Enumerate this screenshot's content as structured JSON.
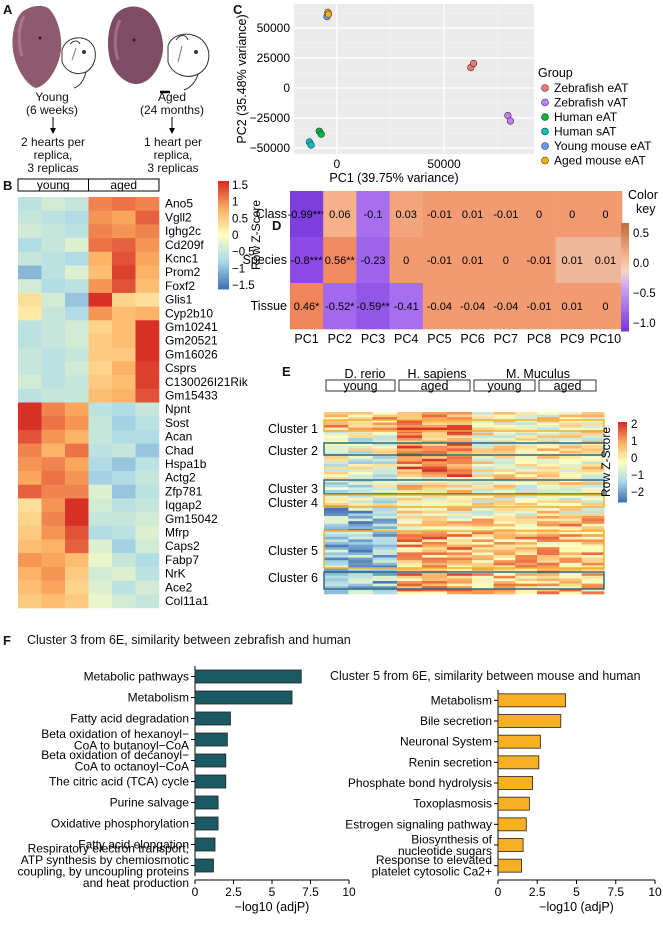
{
  "panels": {
    "a": {
      "letter": "A",
      "young_label": "Young",
      "young_age": "(6 weeks)",
      "aged_label": "Aged",
      "aged_age": "(24 months)",
      "young_sampling": [
        "2 hearts per",
        "replica,",
        "3 replicas"
      ],
      "aged_sampling": [
        "1 heart per",
        "replica,",
        "3 replicas"
      ]
    },
    "b": {
      "letter": "B",
      "groups": [
        "young",
        "aged"
      ],
      "legend_title": "Row Z-Score",
      "legend_ticks": [
        "1.5",
        "1",
        "0.5",
        "0",
        "−0.5",
        "−1",
        "−1.5"
      ],
      "genes": [
        "Ano5",
        "Vgll2",
        "Ighg2c",
        "Cd209f",
        "Kcnc1",
        "Prom2",
        "Foxf2",
        "Glis1",
        "Cyp2b10",
        "Gm10241",
        "Gm20521",
        "Gm16026",
        "Csprs",
        "C130026I21Rik",
        "Gm15433",
        "Npnt",
        "Sost",
        "Acan",
        "Chad",
        "Hspa1b",
        "Actg2",
        "Zfp781",
        "Iqgap2",
        "Gm15042",
        "Mfrp",
        "Caps2",
        "Fabp7",
        "NrK",
        "Ace2",
        "Col11a1"
      ],
      "zscores": [
        [
          -0.6,
          -0.4,
          -0.5,
          1.0,
          1.1,
          1.0
        ],
        [
          -0.5,
          -0.6,
          -0.7,
          0.9,
          0.8,
          1.2
        ],
        [
          -0.4,
          -0.5,
          -0.6,
          1.0,
          0.9,
          1.0
        ],
        [
          -0.7,
          -0.5,
          -0.3,
          1.1,
          1.2,
          0.9
        ],
        [
          -0.5,
          -0.6,
          -0.7,
          0.7,
          1.3,
          0.8
        ],
        [
          -1.0,
          -0.6,
          -0.3,
          0.6,
          1.4,
          0.7
        ],
        [
          -0.4,
          -0.7,
          -0.6,
          0.9,
          1.3,
          0.6
        ],
        [
          0.3,
          -0.4,
          -0.9,
          1.6,
          0.4,
          0.3
        ],
        [
          0.2,
          -0.5,
          -0.7,
          0.9,
          0.6,
          0.7
        ],
        [
          -0.6,
          -0.5,
          -0.4,
          0.4,
          0.6,
          1.6
        ],
        [
          -0.6,
          -0.5,
          -0.4,
          0.5,
          0.6,
          1.5
        ],
        [
          -0.5,
          -0.6,
          -0.5,
          0.5,
          0.5,
          1.6
        ],
        [
          -0.5,
          -0.6,
          -0.4,
          0.4,
          0.7,
          1.4
        ],
        [
          -0.4,
          -0.6,
          -0.5,
          0.5,
          0.6,
          1.4
        ],
        [
          -0.6,
          -0.5,
          -0.5,
          0.6,
          0.7,
          1.3
        ],
        [
          1.6,
          1.0,
          0.8,
          -0.6,
          -0.7,
          -0.5
        ],
        [
          1.5,
          1.1,
          0.9,
          -0.5,
          -0.8,
          -0.6
        ],
        [
          1.3,
          0.9,
          0.7,
          -0.5,
          -0.7,
          -0.7
        ],
        [
          1.0,
          0.7,
          1.1,
          -0.6,
          -0.5,
          -0.9
        ],
        [
          0.9,
          1.0,
          0.8,
          -0.7,
          -0.9,
          -0.6
        ],
        [
          0.8,
          1.1,
          0.9,
          -0.8,
          -0.7,
          -0.5
        ],
        [
          1.2,
          1.0,
          1.0,
          -0.3,
          -0.9,
          -0.6
        ],
        [
          0.3,
          0.9,
          1.6,
          -0.4,
          -0.6,
          -0.5
        ],
        [
          0.4,
          1.0,
          1.5,
          -0.5,
          -0.5,
          -0.4
        ],
        [
          0.5,
          0.9,
          1.3,
          -0.7,
          -0.6,
          -0.3
        ],
        [
          0.6,
          0.7,
          1.2,
          -0.3,
          -0.8,
          -0.4
        ],
        [
          0.9,
          0.8,
          0.6,
          -0.2,
          -0.5,
          -0.7
        ],
        [
          0.7,
          0.9,
          0.5,
          -0.4,
          -0.3,
          -0.6
        ],
        [
          0.6,
          0.8,
          0.4,
          -0.3,
          -0.6,
          -0.4
        ],
        [
          0.5,
          0.6,
          0.5,
          -0.2,
          -0.4,
          -0.5
        ]
      ]
    },
    "c": {
      "letter": "C",
      "legend_title": "Group",
      "chart_data": {
        "type": "scatter",
        "xlabel": "PC1 (39.75% variance)",
        "ylabel": "PC2 (35.48% variance)",
        "xlim": [
          -20000,
          92000
        ],
        "ylim": [
          -55000,
          70000
        ],
        "xticks": [
          0,
          50000
        ],
        "yticks": [
          50000,
          25000,
          0,
          -25000,
          -50000
        ],
        "grid": true,
        "legend_position": "right",
        "series": [
          {
            "name": "Zebrafish eAT",
            "color": "#F8766D",
            "points": [
              [
                62500,
                17000
              ],
              [
                63800,
                20500
              ]
            ]
          },
          {
            "name": "Zebrafish vAT",
            "color": "#C77CFF",
            "points": [
              [
                79800,
                -23000
              ],
              [
                81000,
                -27500
              ]
            ]
          },
          {
            "name": "Human eAT",
            "color": "#00BA38",
            "points": [
              [
                -8200,
                -36000
              ],
              [
                -7300,
                -38500
              ]
            ]
          },
          {
            "name": "Human sAT",
            "color": "#00BFC4",
            "points": [
              [
                -12800,
                -45000
              ],
              [
                -12000,
                -47500
              ]
            ]
          },
          {
            "name": "Young mouse eAT",
            "color": "#619CFF",
            "points": [
              [
                -4600,
                59500
              ]
            ]
          },
          {
            "name": "Aged mouse eAT",
            "color": "#FFB000",
            "points": [
              [
                -4200,
                63000
              ],
              [
                -3900,
                61500
              ]
            ]
          }
        ]
      }
    },
    "d": {
      "letter": "D",
      "key_title": [
        "Color",
        "key"
      ],
      "key_ticks": [
        "0.5",
        "0.0",
        "−0.5",
        "−1.0"
      ],
      "rows": [
        "Class",
        "Species",
        "Tissue"
      ],
      "cols": [
        "PC1",
        "PC2",
        "PC3",
        "PC4",
        "PC5",
        "PC6",
        "PC7",
        "PC8",
        "PC9",
        "PC10"
      ],
      "values": [
        [
          -0.99,
          0.06,
          -0.1,
          0.03,
          -0.01,
          0.01,
          -0.01,
          0,
          0,
          0
        ],
        [
          -0.8,
          0.56,
          -0.23,
          0,
          -0.01,
          0.01,
          0,
          -0.01,
          0.01,
          0.01
        ],
        [
          0.46,
          -0.52,
          -0.59,
          -0.41,
          -0.04,
          -0.04,
          -0.04,
          -0.01,
          0.01,
          0
        ]
      ],
      "colors": [
        [
          "#7e3fe0",
          "#f6b08c",
          "#a86ef0",
          "#f4a57e",
          "#f29a72",
          "#f29a72",
          "#f29a72",
          "#f29a72",
          "#f29a72",
          "#f29a72"
        ],
        [
          "#8d4ae5",
          "#f08a62",
          "#9f63ee",
          "#f29a72",
          "#f29a72",
          "#f29a72",
          "#f29a72",
          "#f29a72",
          "#efb79a",
          "#efb79a"
        ],
        [
          "#f0845a",
          "#a268ee",
          "#9357e8",
          "#a86ef0",
          "#f29a72",
          "#f29a72",
          "#f29a72",
          "#f29a72",
          "#f29a72",
          "#f29a72"
        ]
      ],
      "labels": [
        [
          "-0.99***",
          "0.06",
          "-0.1",
          "0.03",
          "-0.01",
          "0.01",
          "-0.01",
          "0",
          "0",
          "0"
        ],
        [
          "-0.8***",
          "0.56**",
          "-0.23",
          "0",
          "-0.01",
          "0.01",
          "0",
          "-0.01",
          "0.01",
          "0.01"
        ],
        [
          "0.46*",
          "-0.52*",
          "-0.59**",
          "-0.41",
          "-0.04",
          "-0.04",
          "-0.04",
          "-0.01",
          "0.01",
          "0"
        ]
      ]
    },
    "e": {
      "letter": "E",
      "species": [
        "D. rerio",
        "H. sapiens",
        "M. Muculus"
      ],
      "subgroups": [
        "young",
        "aged",
        "young",
        "aged"
      ],
      "clusters": [
        "Cluster 1",
        "Cluster 2",
        "Cluster 3",
        "Cluster 4",
        "Cluster 5",
        "Cluster 6"
      ],
      "legend_title": "Row Z-Score",
      "legend_ticks": [
        "2",
        "1",
        "0",
        "−1",
        "−2"
      ]
    },
    "f": {
      "letter": "F",
      "left": {
        "title": "Cluster 3 from 6E, similarity between zebrafish and human",
        "chart_data": {
          "type": "bar",
          "orientation": "horizontal",
          "categories": [
            [
              "Metabolic pathways"
            ],
            [
              "Metabolism"
            ],
            [
              "Fatty acid degradation"
            ],
            [
              "Beta oxidation of hexanoyl−",
              "CoA to butanoyl−CoA"
            ],
            [
              "Beta oxidation of decanoyl−",
              "CoA to octanoyl−CoA"
            ],
            [
              "The citric acid (TCA) cycle"
            ],
            [
              "Purine salvage"
            ],
            [
              "Oxidative phosphorylation"
            ],
            [
              "Fatty acid elongation"
            ],
            [
              "Respiratory electron transport,",
              "ATP synthesis by chemiosmotic",
              "coupling, by uncoupling proteins",
              "and heat production"
            ]
          ],
          "values": [
            6.9,
            6.3,
            2.3,
            2.1,
            2.0,
            2.0,
            1.5,
            1.5,
            1.3,
            1.2
          ],
          "xlabel": "−log10 (adjP)",
          "xlim": [
            0,
            10
          ],
          "xticks": [
            "0",
            "2.5",
            "5",
            "7.5",
            "10"
          ],
          "color": "#1c5a63"
        }
      },
      "right": {
        "title": "Cluster 5 from 6E, similarity between mouse and human",
        "chart_data": {
          "type": "bar",
          "orientation": "horizontal",
          "categories": [
            [
              "Metabolism"
            ],
            [
              "Bile secretion"
            ],
            [
              "Neuronal System"
            ],
            [
              "Renin secretion"
            ],
            [
              "Phosphate bond hydrolysis"
            ],
            [
              "Toxoplasmosis"
            ],
            [
              "Estrogen signaling pathway"
            ],
            [
              "Biosynthesis of",
              "nucleotide sugars"
            ],
            [
              "Response to elevated",
              "platelet cytosolic Ca2+"
            ]
          ],
          "values": [
            4.3,
            4.0,
            2.7,
            2.6,
            2.2,
            2.0,
            1.8,
            1.6,
            1.5
          ],
          "xlabel": "−log10 (adjP)",
          "xlim": [
            0,
            10
          ],
          "xticks": [
            "0",
            "2.5",
            "5",
            "7.5",
            "10"
          ],
          "color": "#f7b021"
        }
      }
    }
  }
}
